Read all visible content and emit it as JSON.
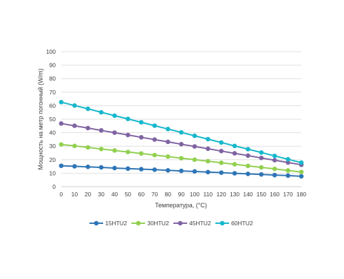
{
  "chart_data": {
    "type": "line",
    "title": "",
    "xlabel": "Температура, (°C)",
    "ylabel": "Мощность на метр погонный (W/m)",
    "x": [
      0,
      10,
      20,
      30,
      40,
      50,
      60,
      70,
      80,
      90,
      100,
      110,
      120,
      130,
      140,
      150,
      160,
      170,
      180
    ],
    "xlim": [
      0,
      180
    ],
    "ylim": [
      0,
      100
    ],
    "yticks": [
      0,
      10,
      20,
      30,
      40,
      50,
      60,
      70,
      80,
      90,
      100
    ],
    "grid": "horizontal",
    "legend": "bottom",
    "series": [
      {
        "name": "15HTU2",
        "color": "#2e75b6",
        "values": [
          15.5,
          15.1,
          14.7,
          14.3,
          13.8,
          13.4,
          13.0,
          12.6,
          12.1,
          11.7,
          11.3,
          10.8,
          10.4,
          9.9,
          9.5,
          9.1,
          8.6,
          8.2,
          7.7
        ]
      },
      {
        "name": "30HTU2",
        "color": "#92d050",
        "values": [
          31.3,
          30.2,
          29.1,
          27.9,
          26.8,
          25.7,
          24.6,
          23.4,
          22.3,
          21.1,
          20.0,
          18.9,
          17.7,
          16.6,
          15.4,
          14.3,
          13.2,
          12.0,
          10.9
        ]
      },
      {
        "name": "45HTU2",
        "color": "#8064a2",
        "values": [
          46.8,
          45.1,
          43.4,
          41.7,
          40.0,
          38.3,
          36.6,
          34.9,
          33.2,
          31.5,
          29.8,
          28.1,
          26.4,
          24.7,
          23.0,
          21.3,
          19.6,
          17.9,
          16.2
        ]
      },
      {
        "name": "60HTU2",
        "color": "#17b8cc",
        "values": [
          62.6,
          60.1,
          57.7,
          55.1,
          52.6,
          50.2,
          47.7,
          45.2,
          42.7,
          40.2,
          37.7,
          35.2,
          32.7,
          30.2,
          27.8,
          25.3,
          22.8,
          20.3,
          17.8
        ]
      }
    ]
  }
}
